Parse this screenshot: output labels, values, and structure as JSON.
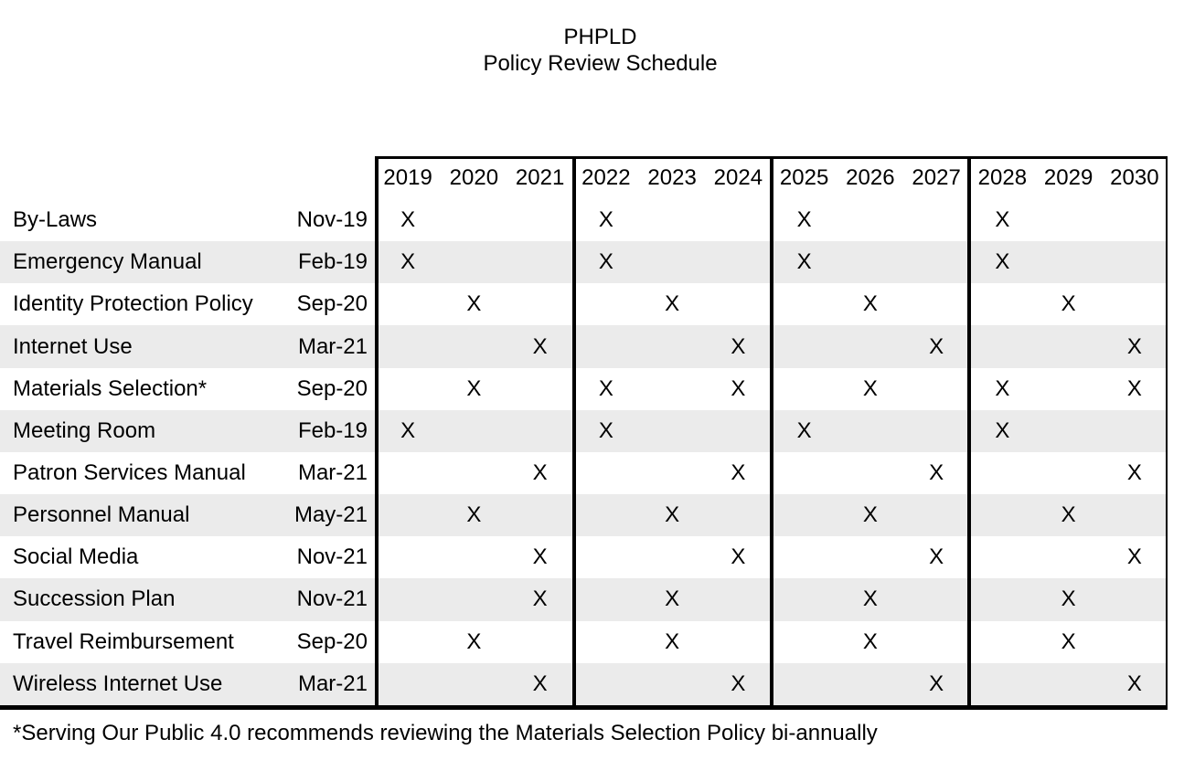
{
  "title": {
    "line1": "PHPLD",
    "line2": "Policy Review Schedule"
  },
  "colors": {
    "background": "#ffffff",
    "text": "#000000",
    "border": "#000000",
    "row_alt_band": "#ebebeb"
  },
  "table": {
    "mark": "X",
    "years": [
      "2019",
      "2020",
      "2021",
      "2022",
      "2023",
      "2024",
      "2025",
      "2026",
      "2027",
      "2028",
      "2029",
      "2030"
    ],
    "year_groups": [
      [
        "2019",
        "2020",
        "2021"
      ],
      [
        "2022",
        "2023",
        "2024"
      ],
      [
        "2025",
        "2026",
        "2027"
      ],
      [
        "2028",
        "2029",
        "2030"
      ]
    ],
    "rows": [
      {
        "policy": "By-Laws",
        "last_review": "Nov-19",
        "marked_years": [
          "2019",
          "2022",
          "2025",
          "2028"
        ]
      },
      {
        "policy": "Emergency Manual",
        "last_review": "Feb-19",
        "marked_years": [
          "2019",
          "2022",
          "2025",
          "2028"
        ]
      },
      {
        "policy": "Identity Protection Policy",
        "last_review": "Sep-20",
        "marked_years": [
          "2020",
          "2023",
          "2026",
          "2029"
        ]
      },
      {
        "policy": "Internet Use",
        "last_review": "Mar-21",
        "marked_years": [
          "2021",
          "2024",
          "2027",
          "2030"
        ]
      },
      {
        "policy": "Materials Selection*",
        "last_review": "Sep-20",
        "marked_years": [
          "2020",
          "2022",
          "2024",
          "2026",
          "2028",
          "2030"
        ]
      },
      {
        "policy": "Meeting Room",
        "last_review": "Feb-19",
        "marked_years": [
          "2019",
          "2022",
          "2025",
          "2028"
        ]
      },
      {
        "policy": "Patron Services Manual",
        "last_review": "Mar-21",
        "marked_years": [
          "2021",
          "2024",
          "2027",
          "2030"
        ]
      },
      {
        "policy": "Personnel Manual",
        "last_review": "May-21",
        "marked_years": [
          "2020",
          "2023",
          "2026",
          "2029"
        ]
      },
      {
        "policy": "Social Media",
        "last_review": "Nov-21",
        "marked_years": [
          "2021",
          "2024",
          "2027",
          "2030"
        ]
      },
      {
        "policy": "Succession Plan",
        "last_review": "Nov-21",
        "marked_years": [
          "2021",
          "2023",
          "2026",
          "2029"
        ]
      },
      {
        "policy": "Travel Reimbursement",
        "last_review": "Sep-20",
        "marked_years": [
          "2020",
          "2023",
          "2026",
          "2029"
        ]
      },
      {
        "policy": "Wireless Internet Use",
        "last_review": "Mar-21",
        "marked_years": [
          "2021",
          "2024",
          "2027",
          "2030"
        ]
      }
    ]
  },
  "footnote": "*Serving Our Public 4.0 recommends reviewing the Materials Selection Policy bi-annually"
}
